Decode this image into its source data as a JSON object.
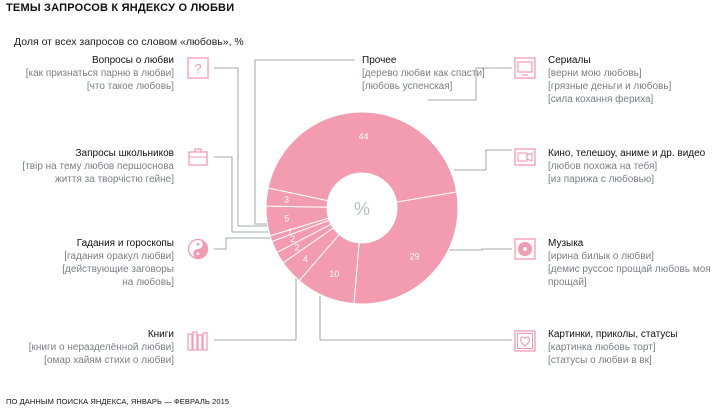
{
  "title": "ТЕМЫ ЗАПРОСОВ К ЯНДЕКСУ О ЛЮБВИ",
  "subtitle": "Доля от всех запросов со словом «любовь», %",
  "footer": "ПО ДАННЫМ ПОИСКА ЯНДЕКСА, ЯНВАРЬ — ФЕВРАЛЬ 2015",
  "accent_color": "#f39bb0",
  "line_color": "#8a8f95",
  "chart_data": {
    "type": "pie",
    "donut": true,
    "center_label": "%",
    "slices": [
      {
        "category": "Прочее",
        "value": 44
      },
      {
        "category": "Сериалы",
        "value": 0
      },
      {
        "category": "Кино, телешоу, аниме и др. видео",
        "value": 0
      },
      {
        "category": "Музыка",
        "value": 29
      },
      {
        "category": "Картинки, приколы, статусы",
        "value": 10
      },
      {
        "category": "Книги",
        "value": 4
      },
      {
        "category": "Гадания и гороскопы",
        "value": 2
      },
      {
        "category": "Запросы школьников",
        "value": 2
      },
      {
        "category": "Запросы школьников",
        "value": 1
      },
      {
        "category": "Вопросы о любви",
        "value": 5
      },
      {
        "category": "Вопросы о любви",
        "value": 3
      }
    ]
  },
  "categories_left": [
    {
      "name": "Вопросы о любви",
      "queries": [
        "[как признаться парню в любви]",
        "[что такое любовь]"
      ],
      "icon": "question-icon"
    },
    {
      "name": "Запросы школьников",
      "queries": [
        "[твір на тему любов першоснова",
        "життя за творчістю гейне]"
      ],
      "icon": "briefcase-icon"
    },
    {
      "name": "Гадания и гороскопы",
      "queries": [
        "[гадания оракул любви]",
        "[действующие заговоры",
        "на любовь]"
      ],
      "icon": "yin-yang-icon"
    },
    {
      "name": "Книги",
      "queries": [
        "[книги о неразделённой любви]",
        "[омар хайям стихи о любви]"
      ],
      "icon": "books-icon"
    }
  ],
  "categories_right": [
    {
      "name": "Прочее",
      "queries": [
        "[дерево любви как спасти]",
        "[любовь успенская]"
      ],
      "icon": ""
    },
    {
      "name": "Сериалы",
      "queries": [
        "[верни мою любовь]",
        "[грязные деньги и любовь]",
        "[сила кохання фериха]"
      ],
      "icon": "tv-icon"
    },
    {
      "name": "Кино, телешоу, аниме и др. видео",
      "queries": [
        "[любов похожа на тебя]",
        "[из парижа с любовью]"
      ],
      "icon": "video-icon"
    },
    {
      "name": "Музыка",
      "queries": [
        "[ирина билык о любви]",
        "[демис руссос прощай любовь моя",
        "прощай]"
      ],
      "icon": "vinyl-icon"
    },
    {
      "name": "Картинки, приколы, статусы",
      "queries": [
        "[картинка любовь торт]",
        "[статусы о любви в вк]"
      ],
      "icon": "heart-picture-icon"
    }
  ]
}
